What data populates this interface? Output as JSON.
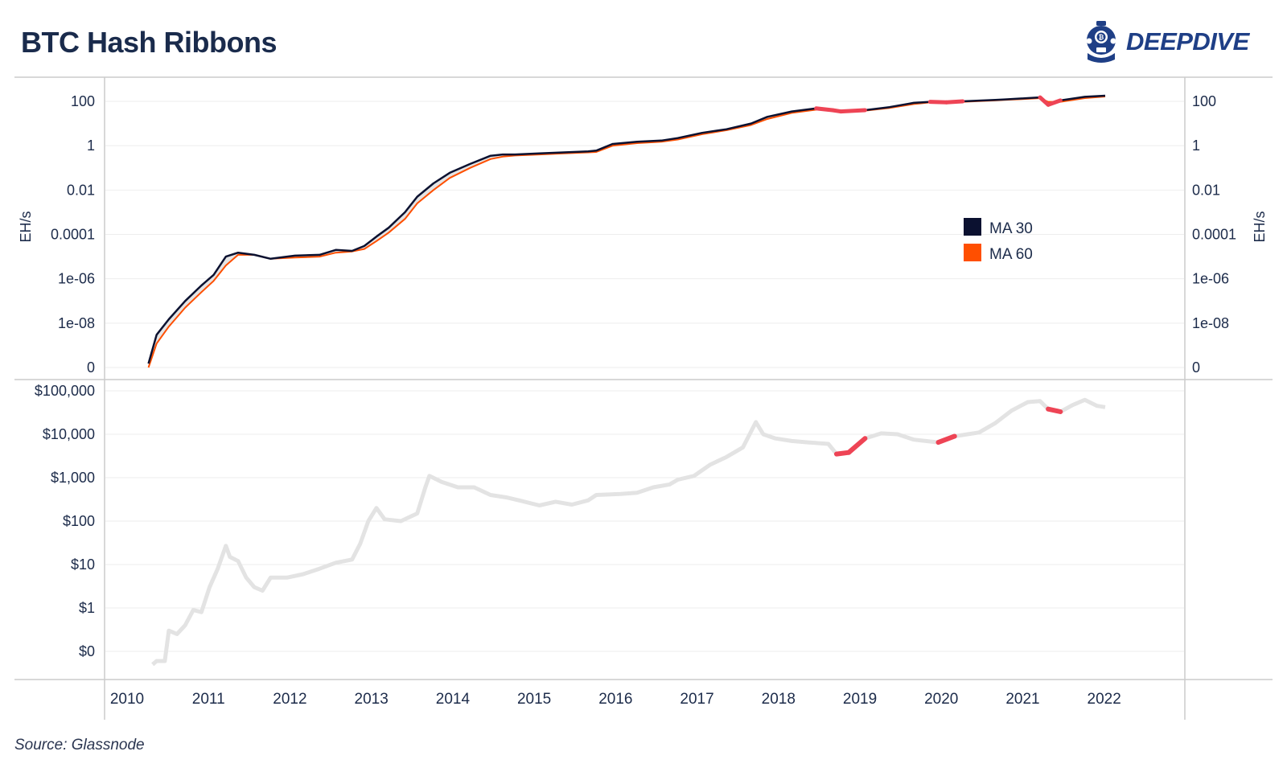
{
  "title": "BTC Hash Ribbons",
  "source": "Source: Glassnode",
  "logo": {
    "text": "DEEPDIVE",
    "icon": "diving-helmet-icon"
  },
  "colors": {
    "ma30": "#0b1130",
    "ma60": "#ff4f00",
    "ribbon": "#e4e4e4",
    "capitulation": "#ee4455",
    "price": "#e3e3e3",
    "grid": "#eeeeee",
    "axis": "#c8c8c8"
  },
  "chart_data": [
    {
      "type": "line",
      "panel": "hash-rate",
      "y_scale": "log",
      "ylabel": "EH/s",
      "ylabel_right": "EH/s",
      "y_ticks": [
        "100",
        "1",
        "0.01",
        "0.0001",
        "1e-06",
        "1e-08",
        "0"
      ],
      "y_tick_values": [
        100,
        1,
        0.01,
        0.0001,
        1e-06,
        1e-08,
        1e-10
      ],
      "legend": [
        "MA 30",
        "MA 60"
      ],
      "legend_placement": "center-right",
      "series": [
        {
          "name": "MA 30",
          "x": [
            2010.5,
            2010.6,
            2010.75,
            2010.95,
            2011.15,
            2011.3,
            2011.45,
            2011.6,
            2011.8,
            2012.0,
            2012.3,
            2012.6,
            2012.8,
            2013.0,
            2013.15,
            2013.3,
            2013.45,
            2013.65,
            2013.8,
            2014.0,
            2014.2,
            2014.45,
            2014.7,
            2014.85,
            2015.0,
            2015.3,
            2015.6,
            2015.9,
            2016.0,
            2016.2,
            2016.5,
            2016.8,
            2017.0,
            2017.3,
            2017.6,
            2017.9,
            2018.1,
            2018.4,
            2018.7,
            2018.9,
            2019.0,
            2019.3,
            2019.6,
            2019.9,
            2020.1,
            2020.3,
            2020.5,
            2020.9,
            2021.0,
            2021.3,
            2021.45,
            2021.55,
            2021.7,
            2022.0,
            2022.25
          ],
          "values": [
            1.5e-10,
            3e-09,
            1.5e-08,
            1e-07,
            5e-07,
            1.5e-06,
            1e-05,
            1.5e-05,
            1.2e-05,
            8e-06,
            1.1e-05,
            1.2e-05,
            2e-05,
            1.8e-05,
            3e-05,
            8e-05,
            0.0002,
            0.001,
            0.005,
            0.02,
            0.06,
            0.15,
            0.35,
            0.4,
            0.4,
            0.45,
            0.5,
            0.55,
            0.6,
            1.2,
            1.5,
            1.7,
            2.2,
            3.8,
            5.5,
            10,
            20,
            35,
            48,
            40,
            35,
            40,
            55,
            85,
            95,
            90,
            100,
            115,
            120,
            140,
            150,
            70,
            110,
            160,
            180
          ]
        },
        {
          "name": "MA 60",
          "x": [
            2010.5,
            2010.6,
            2010.75,
            2010.95,
            2011.15,
            2011.3,
            2011.45,
            2011.6,
            2011.8,
            2012.0,
            2012.3,
            2012.6,
            2012.8,
            2013.0,
            2013.15,
            2013.3,
            2013.45,
            2013.65,
            2013.8,
            2014.0,
            2014.2,
            2014.45,
            2014.7,
            2014.85,
            2015.0,
            2015.3,
            2015.6,
            2015.9,
            2016.0,
            2016.2,
            2016.5,
            2016.8,
            2017.0,
            2017.3,
            2017.6,
            2017.9,
            2018.1,
            2018.4,
            2018.7,
            2018.9,
            2019.0,
            2019.3,
            2019.6,
            2019.9,
            2020.1,
            2020.3,
            2020.5,
            2020.9,
            2021.0,
            2021.3,
            2021.45,
            2021.55,
            2021.7,
            2022.0,
            2022.25
          ],
          "values": [
            1e-10,
            1.2e-09,
            7e-09,
            5e-08,
            2.5e-07,
            8e-07,
            4e-06,
            1.2e-05,
            1.2e-05,
            8e-06,
            9e-06,
            1e-05,
            1.5e-05,
            1.7e-05,
            2.2e-05,
            5e-05,
            0.00012,
            0.0005,
            0.0025,
            0.01,
            0.035,
            0.1,
            0.25,
            0.32,
            0.36,
            0.4,
            0.45,
            0.5,
            0.52,
            1.0,
            1.3,
            1.5,
            1.9,
            3.3,
            5.0,
            8.5,
            16,
            30,
            42,
            45,
            38,
            38,
            50,
            75,
            90,
            92,
            95,
            110,
            115,
            130,
            140,
            95,
            95,
            140,
            165
          ]
        }
      ]
    },
    {
      "type": "line",
      "panel": "price",
      "y_scale": "log",
      "y_ticks": [
        "$100,000",
        "$10,000",
        "$1,000",
        "$100",
        "$10",
        "$1",
        "$0"
      ],
      "y_tick_values": [
        100000,
        10000,
        1000,
        100,
        10,
        1,
        0.1
      ],
      "x_ticks": [
        "2010",
        "2011",
        "2012",
        "2013",
        "2014",
        "2015",
        "2016",
        "2017",
        "2018",
        "2019",
        "2020",
        "2021",
        "2022"
      ],
      "x_tick_values": [
        2010,
        2011,
        2012,
        2013,
        2014,
        2015,
        2016,
        2017,
        2018,
        2019,
        2020,
        2021,
        2022
      ],
      "series": [
        {
          "x": [
            2010.55,
            2010.6,
            2010.7,
            2010.75,
            2010.85,
            2010.95,
            2011.05,
            2011.15,
            2011.25,
            2011.35,
            2011.45,
            2011.5,
            2011.6,
            2011.7,
            2011.8,
            2011.9,
            2012.0,
            2012.2,
            2012.4,
            2012.6,
            2012.8,
            2013.0,
            2013.1,
            2013.2,
            2013.3,
            2013.4,
            2013.6,
            2013.8,
            2013.9,
            2013.95,
            2014.1,
            2014.3,
            2014.5,
            2014.7,
            2014.9,
            2015.05,
            2015.3,
            2015.5,
            2015.7,
            2015.9,
            2016.0,
            2016.3,
            2016.5,
            2016.7,
            2016.9,
            2017.0,
            2017.2,
            2017.4,
            2017.6,
            2017.8,
            2017.96,
            2018.05,
            2018.2,
            2018.4,
            2018.6,
            2018.85,
            2018.95,
            2019.1,
            2019.3,
            2019.5,
            2019.7,
            2019.9,
            2020.2,
            2020.4,
            2020.7,
            2020.9,
            2021.1,
            2021.3,
            2021.45,
            2021.55,
            2021.7,
            2021.85,
            2022.0,
            2022.15,
            2022.25
          ],
          "values": [
            0.05,
            0.06,
            0.06,
            0.3,
            0.25,
            0.4,
            0.9,
            0.8,
            3,
            8,
            27,
            15,
            12,
            5,
            3,
            2.5,
            5,
            5,
            6,
            8,
            11,
            13,
            30,
            100,
            200,
            110,
            100,
            150,
            600,
            1100,
            800,
            600,
            600,
            400,
            350,
            300,
            230,
            280,
            240,
            300,
            400,
            420,
            450,
            600,
            700,
            900,
            1100,
            2000,
            3000,
            5000,
            19000,
            10000,
            8000,
            7000,
            6500,
            6000,
            3500,
            3800,
            8000,
            10500,
            10000,
            7500,
            6500,
            9000,
            11000,
            18000,
            35000,
            55000,
            58000,
            38000,
            33000,
            47000,
            62000,
            45000,
            42000
          ]
        }
      ]
    }
  ]
}
